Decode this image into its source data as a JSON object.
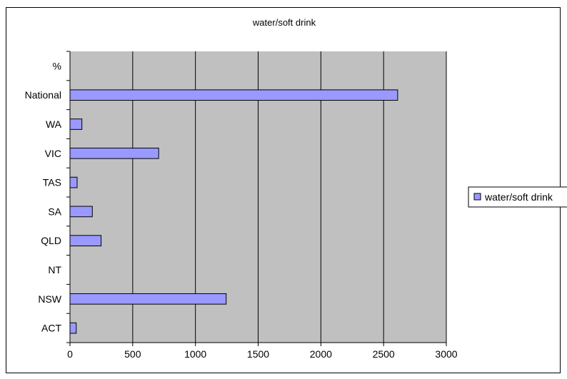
{
  "chart_data": {
    "type": "bar",
    "orientation": "horizontal",
    "title": "water/soft drink",
    "categories": [
      "ACT",
      "NSW",
      "NT",
      "QLD",
      "SA",
      "TAS",
      "VIC",
      "WA",
      "National",
      "%"
    ],
    "series": [
      {
        "name": "water/soft drink",
        "values": [
          50,
          1245,
          0,
          248,
          178,
          57,
          707,
          95,
          2612,
          0
        ],
        "color": "#9999ff"
      }
    ],
    "xlim": [
      0,
      3000
    ],
    "xticks": [
      0,
      500,
      1000,
      1500,
      2000,
      2500,
      3000
    ],
    "grid": true,
    "plot_background": "#c0c0c0",
    "legend": "right"
  }
}
